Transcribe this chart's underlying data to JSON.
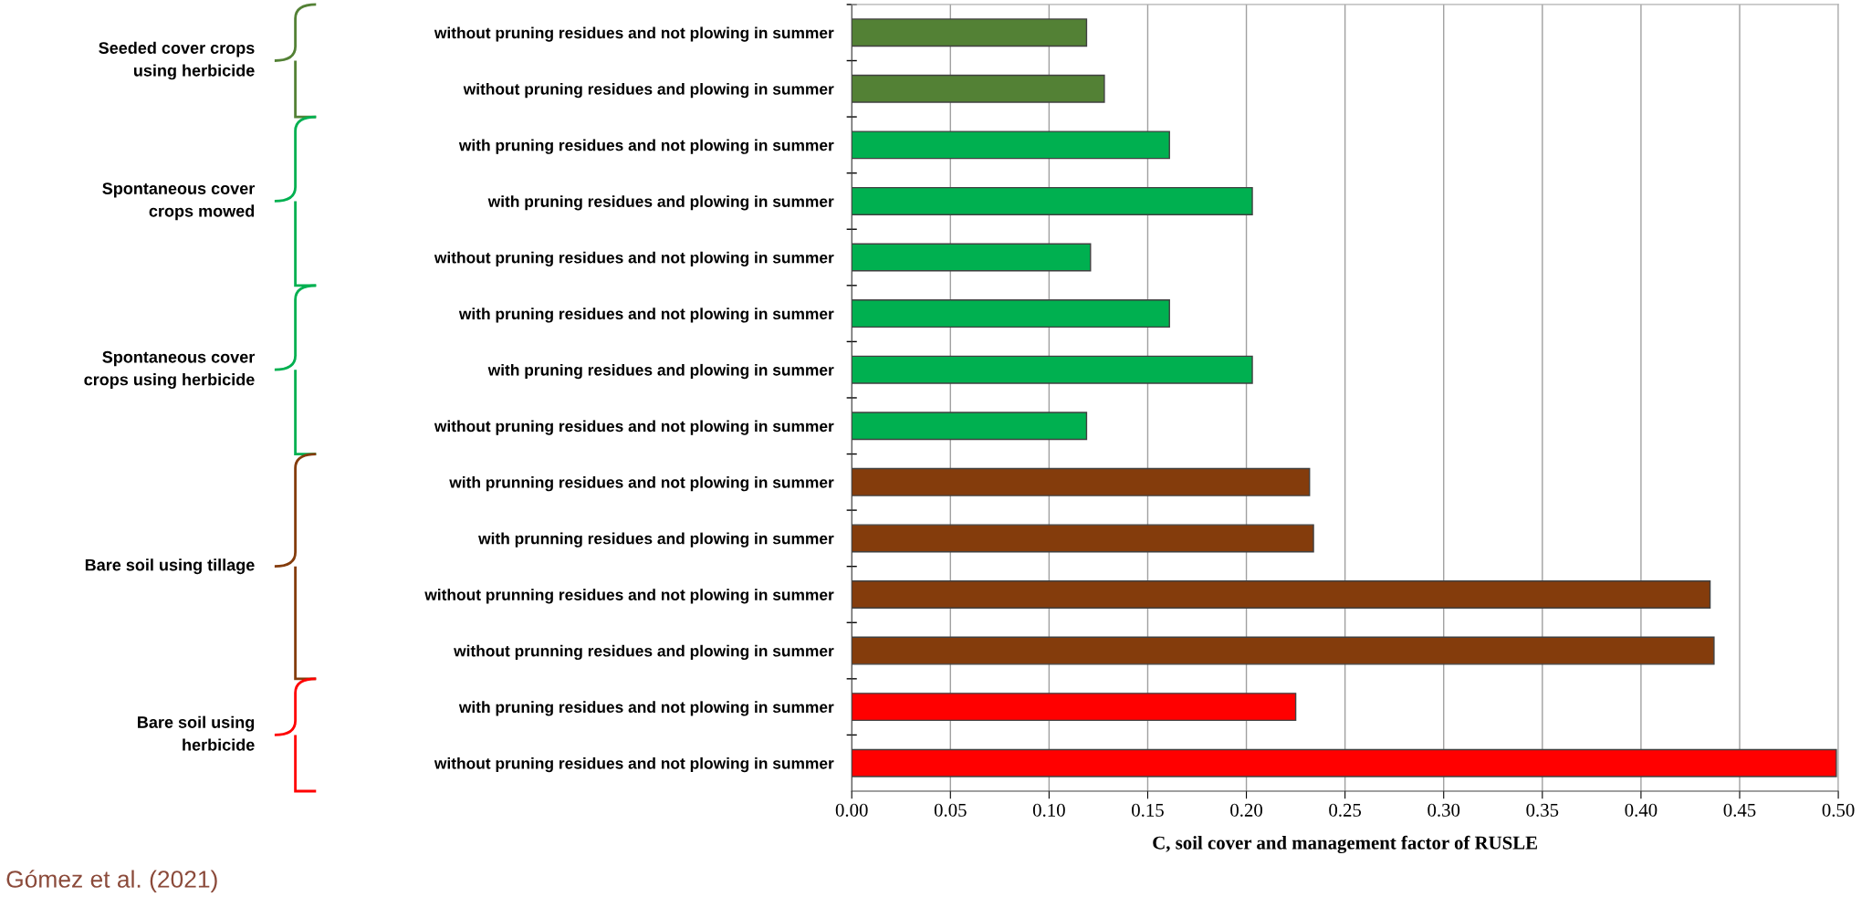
{
  "chart_data": {
    "type": "bar",
    "orientation": "horizontal",
    "categories": [
      "without pruning residues and not plowing in summer",
      "without pruning residues and plowing in summer",
      "with pruning residues and not plowing in summer",
      "with pruning residues and plowing in summer",
      "without pruning residues and not plowing in summer",
      "with pruning residues and not plowing in summer",
      "with pruning residues and plowing in summer",
      "without pruning residues and not plowing in summer",
      "with prunning residues and not plowing in summer",
      "with prunning residues and plowing in summer",
      "without prunning residues and not plowing in summer",
      "without prunning residues and plowing in summer",
      "with pruning residues and not plowing in summer",
      "without pruning residues and not plowing in summer"
    ],
    "values": [
      0.119,
      0.128,
      0.161,
      0.203,
      0.121,
      0.161,
      0.203,
      0.119,
      0.232,
      0.234,
      0.435,
      0.437,
      0.225,
      0.499
    ],
    "colors": [
      "#538135",
      "#538135",
      "#00b050",
      "#00b050",
      "#00b050",
      "#00b050",
      "#00b050",
      "#00b050",
      "#843c0c",
      "#843c0c",
      "#843c0c",
      "#843c0c",
      "#ff0000",
      "#ff0000"
    ],
    "xlabel": "C, soil cover and management factor of RUSLE",
    "xlim": [
      0,
      0.5
    ],
    "xticks": [
      {
        "value": 0,
        "label": "0.00"
      },
      {
        "value": 0.05,
        "label": "0.05"
      },
      {
        "value": 0.1,
        "label": "0.10"
      },
      {
        "value": 0.15,
        "label": "0.15"
      },
      {
        "value": 0.2,
        "label": "0.20"
      },
      {
        "value": 0.25,
        "label": "0.25"
      },
      {
        "value": 0.3,
        "label": "0.30"
      },
      {
        "value": 0.35,
        "label": "0.35"
      },
      {
        "value": 0.4,
        "label": "0.40"
      },
      {
        "value": 0.45,
        "label": "0.45"
      },
      {
        "value": 0.5,
        "label": "0.50"
      }
    ],
    "grid": "x",
    "annotations": [
      "Seeded cover crops\nusing herbicide",
      "Spontaneous cover\ncrops mowed",
      "Spontaneous cover\ncrops using herbicide",
      "Bare soil using tillage",
      "Bare soil using\nherbicide",
      "Gómez et al. (2021)"
    ]
  }
}
